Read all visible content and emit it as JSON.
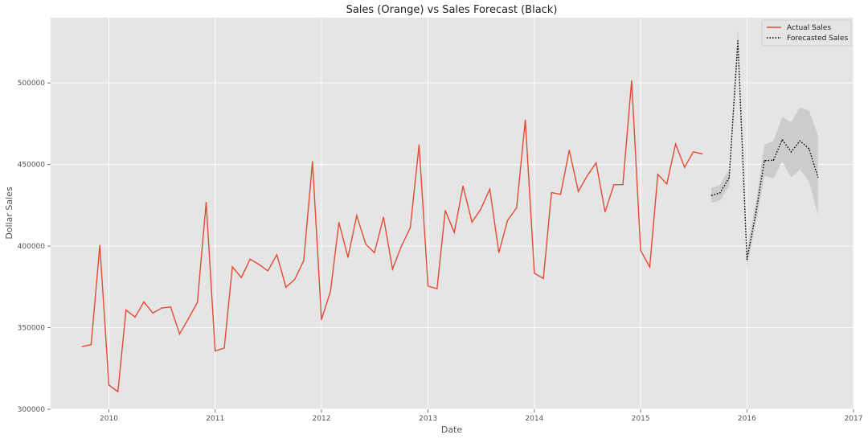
{
  "chart_data": {
    "type": "line",
    "title": "Sales (Orange) vs Sales Forecast (Black)",
    "xlabel": "Date",
    "ylabel": "Dollar Sales",
    "xlim": [
      "2009-06-15",
      "2017-01-01"
    ],
    "ylim": [
      300000,
      540000
    ],
    "x_ticks": [
      "2010",
      "2011",
      "2012",
      "2013",
      "2014",
      "2015",
      "2016",
      "2017"
    ],
    "y_ticks": [
      "300000",
      "350000",
      "400000",
      "450000",
      "500000"
    ],
    "grid": true,
    "legend_position": "top-right",
    "colors": {
      "actual": "#e24a33",
      "forecast": "#000000",
      "interval": "#c8c8c8",
      "plot_background": "#e5e5e5",
      "grid": "#ffffff"
    },
    "series": [
      {
        "name": "Actual Sales",
        "style": "solid",
        "x": [
          "2009-10-01",
          "2009-11-01",
          "2009-12-01",
          "2010-01-01",
          "2010-02-01",
          "2010-03-01",
          "2010-04-01",
          "2010-05-01",
          "2010-06-01",
          "2010-07-01",
          "2010-08-01",
          "2010-09-01",
          "2010-10-01",
          "2010-11-01",
          "2010-12-01",
          "2011-01-01",
          "2011-02-01",
          "2011-03-01",
          "2011-04-01",
          "2011-05-01",
          "2011-06-01",
          "2011-07-01",
          "2011-08-01",
          "2011-09-01",
          "2011-10-01",
          "2011-11-01",
          "2011-12-01",
          "2012-01-01",
          "2012-02-01",
          "2012-03-01",
          "2012-04-01",
          "2012-05-01",
          "2012-06-01",
          "2012-07-01",
          "2012-08-01",
          "2012-09-01",
          "2012-10-01",
          "2012-11-01",
          "2012-12-01",
          "2013-01-01",
          "2013-02-01",
          "2013-03-01",
          "2013-04-01",
          "2013-05-01",
          "2013-06-01",
          "2013-07-01",
          "2013-08-01",
          "2013-09-01",
          "2013-10-01",
          "2013-11-01",
          "2013-12-01",
          "2014-01-01",
          "2014-02-01",
          "2014-03-01",
          "2014-04-01",
          "2014-05-01",
          "2014-06-01",
          "2014-07-01",
          "2014-08-01",
          "2014-09-01",
          "2014-10-01",
          "2014-11-01",
          "2014-12-01",
          "2015-01-01",
          "2015-02-01",
          "2015-03-01",
          "2015-04-01",
          "2015-05-01",
          "2015-06-01",
          "2015-07-01",
          "2015-08-01"
        ],
        "values": [
          338500,
          339500,
          400500,
          314800,
          310800,
          360800,
          356500,
          365800,
          359000,
          362000,
          362700,
          346200,
          355500,
          365500,
          426800,
          335700,
          337500,
          387300,
          380700,
          392000,
          388700,
          384800,
          394700,
          374800,
          379500,
          391000,
          451800,
          354900,
          372300,
          414500,
          393100,
          418700,
          401200,
          395900,
          417800,
          385900,
          399800,
          411300,
          462000,
          375400,
          373900,
          421800,
          408400,
          436800,
          414700,
          422600,
          435000,
          396000,
          415700,
          423500,
          477300,
          383400,
          380200,
          432800,
          431700,
          458800,
          433500,
          442900,
          451000,
          421000,
          437600,
          437700,
          501400,
          397400,
          387200,
          444000,
          438100,
          462600,
          448300,
          457800,
          456500
        ]
      },
      {
        "name": "Forecasted Sales",
        "style": "dotted",
        "x": [
          "2015-09-01",
          "2015-10-01",
          "2015-11-01",
          "2015-12-01",
          "2016-01-01",
          "2016-02-01",
          "2016-03-01",
          "2016-04-01",
          "2016-05-01",
          "2016-06-01",
          "2016-07-01",
          "2016-08-01",
          "2016-09-01"
        ],
        "values": [
          431000,
          432700,
          442000,
          525900,
          391800,
          420500,
          452400,
          452600,
          465200,
          457800,
          464500,
          459700,
          442200
        ],
        "lower": [
          426500,
          428000,
          437000,
          518500,
          387000,
          414500,
          443000,
          441500,
          452000,
          442000,
          447000,
          439500,
          419000
        ],
        "upper": [
          435500,
          437500,
          447500,
          533000,
          397000,
          427000,
          462000,
          464500,
          479000,
          476000,
          485000,
          483000,
          468000
        ]
      }
    ]
  }
}
